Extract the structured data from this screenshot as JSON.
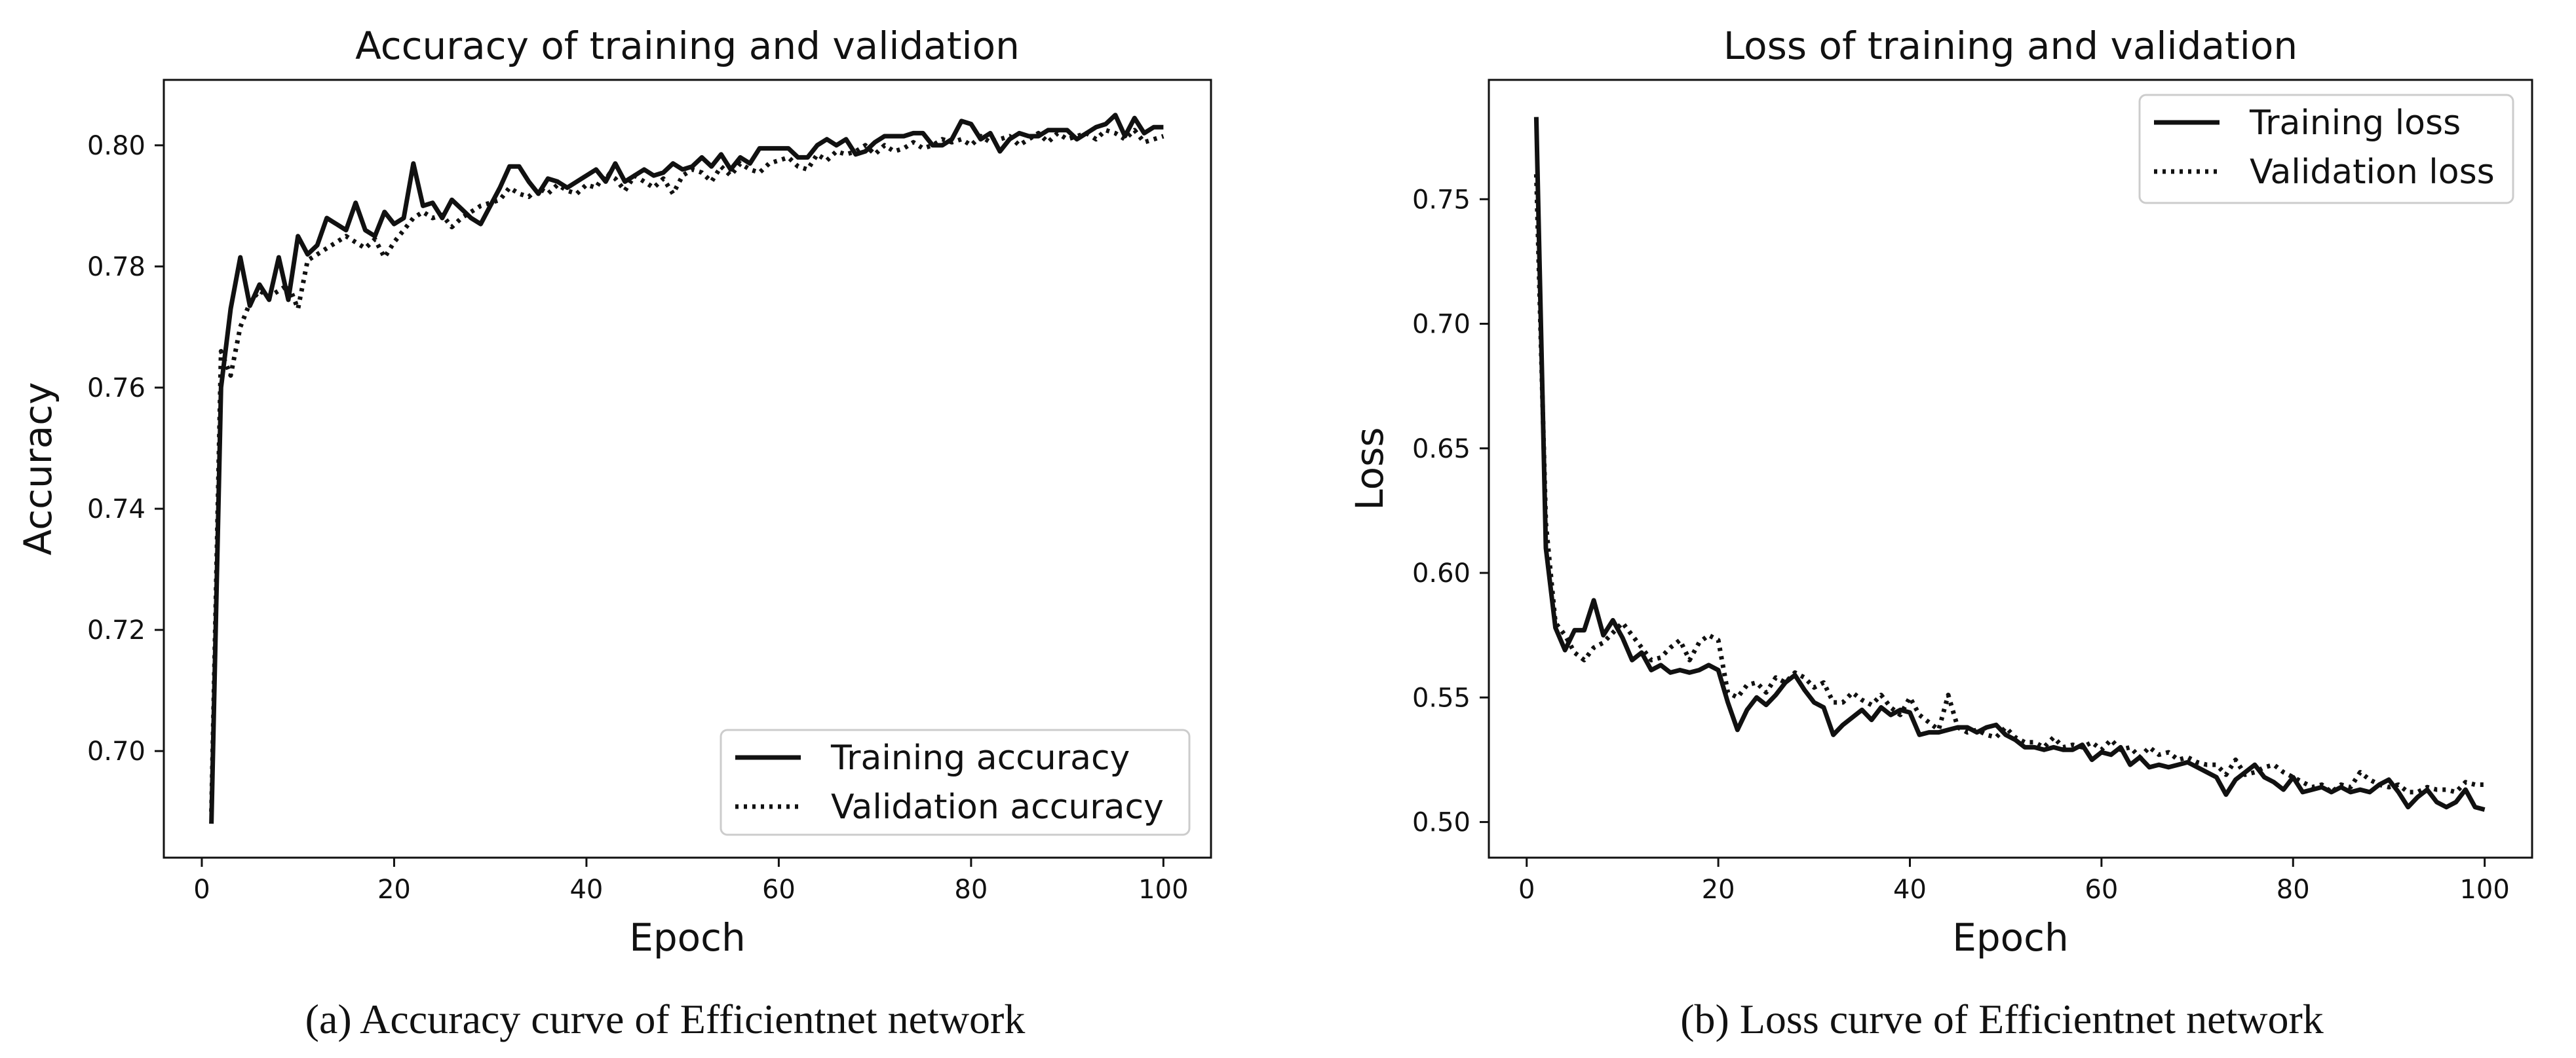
{
  "figure": {
    "panels": [
      {
        "caption": "(a) Accuracy curve of Efficientnet network"
      },
      {
        "caption": "(b) Loss curve of Efficientnet network"
      }
    ]
  },
  "chart_data": [
    {
      "type": "line",
      "title": "Accuracy of training and validation",
      "xlabel": "Epoch",
      "ylabel": "Accuracy",
      "xlim": [
        -3.95,
        104.95
      ],
      "ylim": [
        0.6824,
        0.8108
      ],
      "xticks": [
        0,
        20,
        40,
        60,
        80,
        100
      ],
      "xtick_labels": [
        "0",
        "20",
        "40",
        "60",
        "80",
        "100"
      ],
      "yticks": [
        0.7,
        0.72,
        0.74,
        0.76,
        0.78,
        0.8
      ],
      "ytick_labels": [
        "0.70",
        "0.72",
        "0.74",
        "0.76",
        "0.78",
        "0.80"
      ],
      "grid": false,
      "legend_position": "lower-right",
      "x": [
        1,
        2,
        3,
        4,
        5,
        6,
        7,
        8,
        9,
        10,
        11,
        12,
        13,
        14,
        15,
        16,
        17,
        18,
        19,
        20,
        21,
        22,
        23,
        24,
        25,
        26,
        27,
        28,
        29,
        30,
        31,
        32,
        33,
        34,
        35,
        36,
        37,
        38,
        39,
        40,
        41,
        42,
        43,
        44,
        45,
        46,
        47,
        48,
        49,
        50,
        51,
        52,
        53,
        54,
        55,
        56,
        57,
        58,
        59,
        60,
        61,
        62,
        63,
        64,
        65,
        66,
        67,
        68,
        69,
        70,
        71,
        72,
        73,
        74,
        75,
        76,
        77,
        78,
        79,
        80,
        81,
        82,
        83,
        84,
        85,
        86,
        87,
        88,
        89,
        90,
        91,
        92,
        93,
        94,
        95,
        96,
        97,
        98,
        99,
        100
      ],
      "series": [
        {
          "name": "Training accuracy",
          "style": "solid",
          "values": [
            0.688,
            0.76,
            0.773,
            0.7815,
            0.7735,
            0.777,
            0.7745,
            0.7815,
            0.7745,
            0.785,
            0.782,
            0.7835,
            0.788,
            0.787,
            0.786,
            0.7905,
            0.786,
            0.785,
            0.789,
            0.787,
            0.788,
            0.797,
            0.79,
            0.7905,
            0.788,
            0.791,
            0.7895,
            0.788,
            0.787,
            0.79,
            0.793,
            0.7965,
            0.7965,
            0.794,
            0.792,
            0.7945,
            0.794,
            0.793,
            0.794,
            0.795,
            0.796,
            0.794,
            0.797,
            0.794,
            0.795,
            0.796,
            0.795,
            0.7955,
            0.797,
            0.796,
            0.7965,
            0.798,
            0.7965,
            0.7985,
            0.796,
            0.798,
            0.797,
            0.7995,
            0.7995,
            0.7995,
            0.7995,
            0.798,
            0.798,
            0.8,
            0.801,
            0.8,
            0.801,
            0.7985,
            0.799,
            0.8005,
            0.8015,
            0.8015,
            0.8015,
            0.802,
            0.802,
            0.8,
            0.8,
            0.801,
            0.804,
            0.8035,
            0.801,
            0.802,
            0.799,
            0.801,
            0.802,
            0.8015,
            0.8015,
            0.8025,
            0.8025,
            0.8025,
            0.801,
            0.802,
            0.803,
            0.8035,
            0.805,
            0.8015,
            0.8045,
            0.802,
            0.803,
            0.803
          ]
        },
        {
          "name": "Validation accuracy",
          "style": "dotted",
          "values": [
            0.69,
            0.766,
            0.762,
            0.77,
            0.774,
            0.776,
            0.775,
            0.776,
            0.777,
            0.773,
            0.781,
            0.782,
            0.783,
            0.784,
            0.785,
            0.784,
            0.783,
            0.7845,
            0.7815,
            0.784,
            0.786,
            0.788,
            0.789,
            0.788,
            0.7885,
            0.7865,
            0.788,
            0.789,
            0.79,
            0.7905,
            0.791,
            0.793,
            0.792,
            0.7915,
            0.793,
            0.792,
            0.7935,
            0.7925,
            0.792,
            0.7935,
            0.793,
            0.7955,
            0.7945,
            0.7925,
            0.795,
            0.794,
            0.793,
            0.7945,
            0.792,
            0.795,
            0.796,
            0.7955,
            0.794,
            0.7965,
            0.795,
            0.797,
            0.796,
            0.7955,
            0.797,
            0.7975,
            0.798,
            0.7965,
            0.796,
            0.7985,
            0.7975,
            0.799,
            0.7985,
            0.799,
            0.8,
            0.7985,
            0.8,
            0.799,
            0.7995,
            0.8005,
            0.7995,
            0.8,
            0.801,
            0.8005,
            0.801,
            0.8,
            0.8015,
            0.8005,
            0.801,
            0.8015,
            0.8,
            0.801,
            0.802,
            0.8005,
            0.802,
            0.801,
            0.8015,
            0.802,
            0.801,
            0.8025,
            0.802,
            0.801,
            0.8025,
            0.8005,
            0.801,
            0.8015
          ]
        }
      ]
    },
    {
      "type": "line",
      "title": "Loss of training and validation",
      "xlabel": "Epoch",
      "ylabel": "Loss",
      "xlim": [
        -3.95,
        104.95
      ],
      "ylim": [
        0.4857,
        0.7979
      ],
      "xticks": [
        0,
        20,
        40,
        60,
        80,
        100
      ],
      "xtick_labels": [
        "0",
        "20",
        "40",
        "60",
        "80",
        "100"
      ],
      "yticks": [
        0.5,
        0.55,
        0.6,
        0.65,
        0.7,
        0.75
      ],
      "ytick_labels": [
        "0.50",
        "0.55",
        "0.60",
        "0.65",
        "0.70",
        "0.75"
      ],
      "grid": false,
      "legend_position": "upper-right",
      "x": [
        1,
        2,
        3,
        4,
        5,
        6,
        7,
        8,
        9,
        10,
        11,
        12,
        13,
        14,
        15,
        16,
        17,
        18,
        19,
        20,
        21,
        22,
        23,
        24,
        25,
        26,
        27,
        28,
        29,
        30,
        31,
        32,
        33,
        34,
        35,
        36,
        37,
        38,
        39,
        40,
        41,
        42,
        43,
        44,
        45,
        46,
        47,
        48,
        49,
        50,
        51,
        52,
        53,
        54,
        55,
        56,
        57,
        58,
        59,
        60,
        61,
        62,
        63,
        64,
        65,
        66,
        67,
        68,
        69,
        70,
        71,
        72,
        73,
        74,
        75,
        76,
        77,
        78,
        79,
        80,
        81,
        82,
        83,
        84,
        85,
        86,
        87,
        88,
        89,
        90,
        91,
        92,
        93,
        94,
        95,
        96,
        97,
        98,
        99,
        100
      ],
      "series": [
        {
          "name": "Training loss",
          "style": "solid",
          "values": [
            0.783,
            0.61,
            0.578,
            0.569,
            0.577,
            0.577,
            0.589,
            0.575,
            0.581,
            0.574,
            0.565,
            0.568,
            0.561,
            0.563,
            0.56,
            0.561,
            0.56,
            0.561,
            0.563,
            0.561,
            0.548,
            0.537,
            0.545,
            0.55,
            0.547,
            0.551,
            0.556,
            0.559,
            0.553,
            0.548,
            0.546,
            0.535,
            0.539,
            0.542,
            0.545,
            0.541,
            0.546,
            0.543,
            0.545,
            0.544,
            0.535,
            0.536,
            0.536,
            0.537,
            0.538,
            0.538,
            0.536,
            0.538,
            0.539,
            0.535,
            0.533,
            0.53,
            0.53,
            0.529,
            0.53,
            0.529,
            0.529,
            0.531,
            0.525,
            0.528,
            0.527,
            0.53,
            0.523,
            0.526,
            0.522,
            0.523,
            0.522,
            0.523,
            0.524,
            0.522,
            0.52,
            0.518,
            0.511,
            0.517,
            0.52,
            0.523,
            0.518,
            0.516,
            0.513,
            0.518,
            0.512,
            0.513,
            0.514,
            0.512,
            0.514,
            0.512,
            0.513,
            0.512,
            0.515,
            0.517,
            0.512,
            0.506,
            0.51,
            0.513,
            0.508,
            0.506,
            0.508,
            0.513,
            0.506,
            0.505
          ]
        },
        {
          "name": "Validation loss",
          "style": "dotted",
          "values": [
            0.76,
            0.62,
            0.58,
            0.575,
            0.568,
            0.565,
            0.57,
            0.572,
            0.576,
            0.58,
            0.575,
            0.57,
            0.565,
            0.566,
            0.57,
            0.573,
            0.565,
            0.572,
            0.575,
            0.573,
            0.552,
            0.55,
            0.555,
            0.556,
            0.552,
            0.558,
            0.556,
            0.56,
            0.558,
            0.554,
            0.556,
            0.548,
            0.548,
            0.552,
            0.549,
            0.547,
            0.551,
            0.546,
            0.543,
            0.55,
            0.543,
            0.54,
            0.537,
            0.551,
            0.538,
            0.536,
            0.537,
            0.535,
            0.534,
            0.538,
            0.534,
            0.532,
            0.532,
            0.53,
            0.534,
            0.53,
            0.531,
            0.53,
            0.532,
            0.529,
            0.533,
            0.529,
            0.53,
            0.526,
            0.53,
            0.527,
            0.528,
            0.525,
            0.526,
            0.524,
            0.523,
            0.523,
            0.519,
            0.525,
            0.519,
            0.52,
            0.522,
            0.523,
            0.52,
            0.518,
            0.516,
            0.514,
            0.515,
            0.512,
            0.515,
            0.514,
            0.52,
            0.517,
            0.515,
            0.514,
            0.515,
            0.512,
            0.512,
            0.514,
            0.513,
            0.513,
            0.512,
            0.516,
            0.515,
            0.515
          ]
        }
      ]
    }
  ]
}
